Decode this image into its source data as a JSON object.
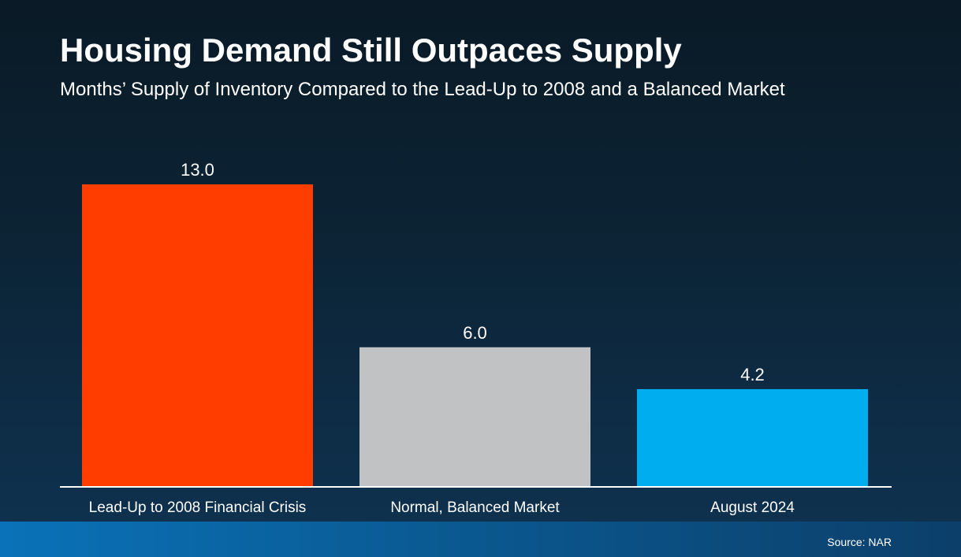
{
  "header": {
    "title": "Housing Demand Still Outpaces Supply",
    "subtitle": "Months’ Supply of Inventory Compared to the Lead-Up to 2008 and a Balanced Market"
  },
  "footer": {
    "source": "Source: NAR"
  },
  "colors": {
    "bar_1": "#ff3d00",
    "bar_2": "#c0c2c3",
    "bar_3": "#00aeef",
    "baseline": "#ffffff",
    "text": "#ffffff"
  },
  "chart_data": {
    "type": "bar",
    "title": "Housing Demand Still Outpaces Supply",
    "subtitle": "Months’ Supply of Inventory Compared to the Lead-Up to 2008 and a Balanced Market",
    "categories": [
      "Lead-Up to 2008 Financial Crisis",
      "Normal, Balanced Market",
      "August 2024"
    ],
    "values": [
      13.0,
      6.0,
      4.2
    ],
    "value_labels": [
      "13.0",
      "6.0",
      "4.2"
    ],
    "xlabel": "",
    "ylabel": "",
    "ylim": [
      0,
      13.0
    ],
    "grid": false,
    "legend": "none"
  }
}
